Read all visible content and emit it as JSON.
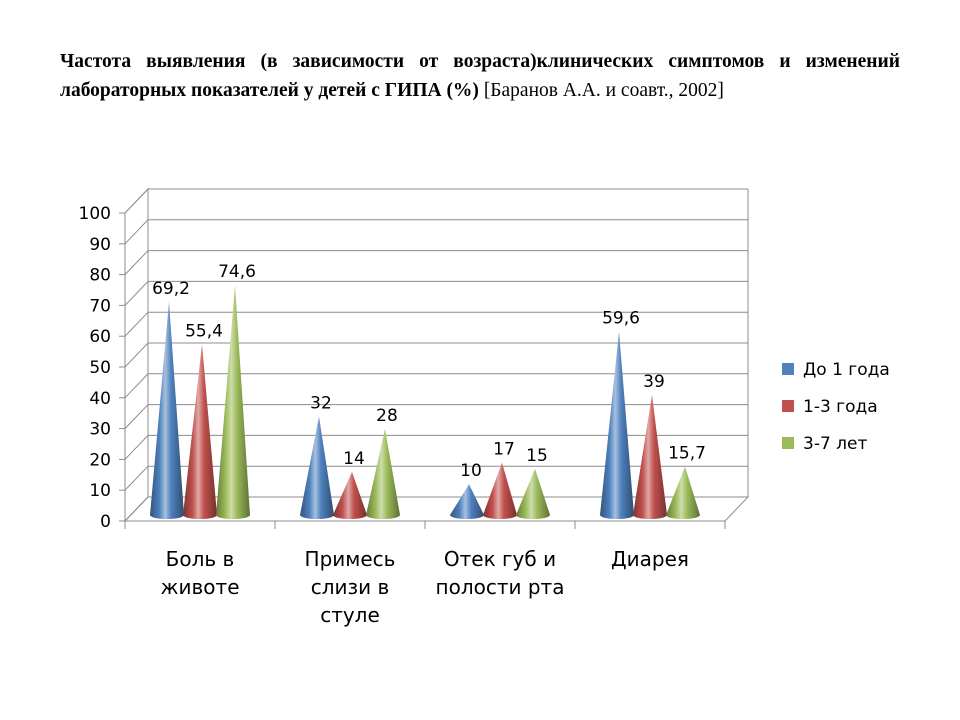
{
  "title": {
    "bold": "Частота выявления (в зависимости от возраста)клинических симптомов и изменений лабораторных показателей у детей  с ГИПА (%)",
    "citation": " [Баранов А.А. и соавт., 2002]"
  },
  "chart_data": {
    "type": "bar",
    "shape": "cone",
    "categories": [
      [
        "Боль в",
        "животе"
      ],
      [
        "Примесь",
        "слизи в",
        "стуле"
      ],
      [
        "Отек губ и",
        "полости рта"
      ],
      [
        "Диарея"
      ]
    ],
    "series": [
      {
        "name": "До 1 года",
        "color": "#4F81BD",
        "values": [
          69.2,
          32,
          10,
          59.6
        ],
        "labels": [
          "69,2",
          "32",
          "10",
          "59,6"
        ]
      },
      {
        "name": "1-3 года",
        "color": "#C0504D",
        "values": [
          55.4,
          14,
          17,
          39
        ],
        "labels": [
          "55,4",
          "14",
          "17",
          "39"
        ]
      },
      {
        "name": "3-7 лет",
        "color": "#9BBB59",
        "values": [
          74.6,
          28,
          15,
          15.7
        ],
        "labels": [
          "74,6",
          "28",
          "15",
          "15,7"
        ]
      }
    ],
    "y_ticks": [
      "0",
      "10",
      "20",
      "30",
      "40",
      "50",
      "60",
      "70",
      "80",
      "90",
      "100"
    ],
    "ylim": [
      0,
      100
    ],
    "grid": true,
    "legend_position": "right"
  }
}
